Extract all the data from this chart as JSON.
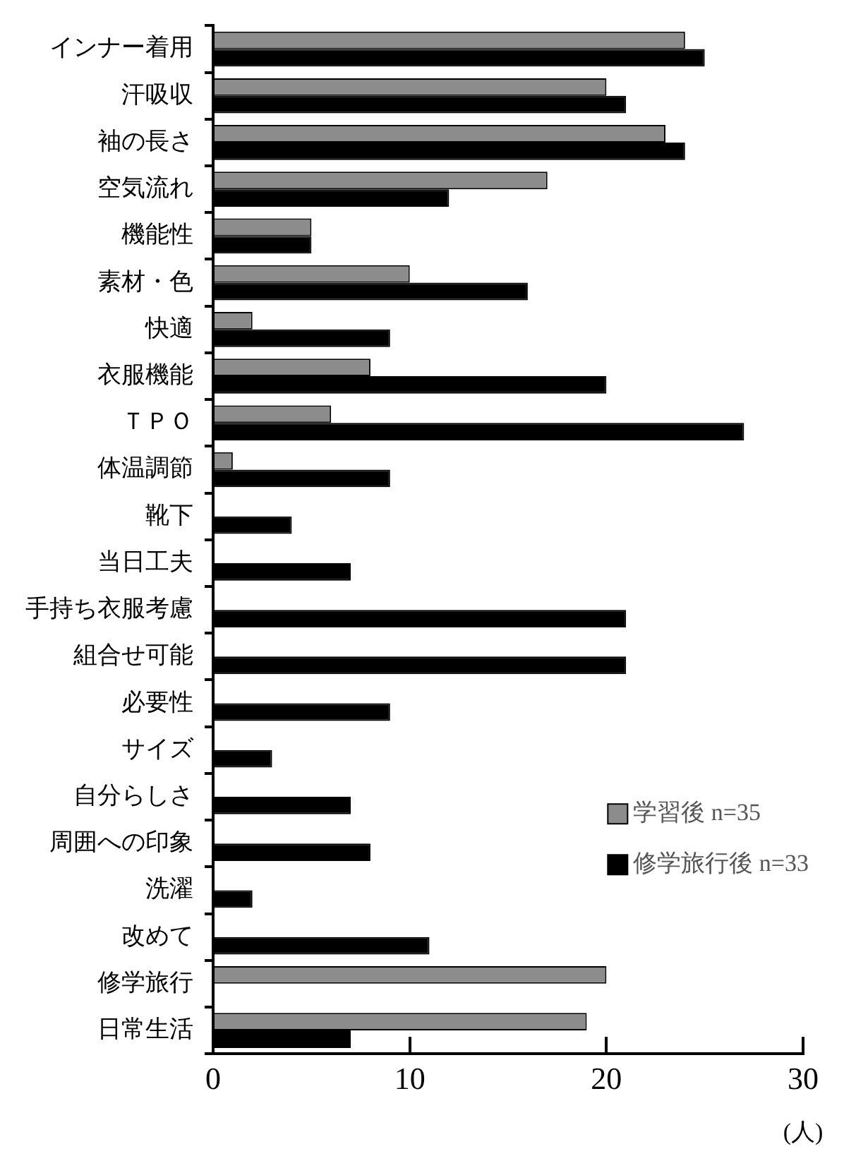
{
  "chart_data": {
    "type": "bar",
    "orientation": "horizontal",
    "xlabel": "(人)",
    "categories": [
      "インナー着用",
      "汗吸収",
      "袖の長さ",
      "空気流れ",
      "機能性",
      "素材・色",
      "快適",
      "衣服機能",
      "ＴＰＯ",
      "体温調節",
      "靴下",
      "当日工夫",
      "手持ち衣服考慮",
      "組合せ可能",
      "必要性",
      "サイズ",
      "自分らしさ",
      "周囲への印象",
      "洗濯",
      "改めて",
      "修学旅行",
      "日常生活"
    ],
    "series": [
      {
        "name": "学習後 n=35",
        "color": "#8c8c8c",
        "values": [
          24,
          20,
          23,
          17,
          5,
          10,
          2,
          8,
          6,
          1,
          null,
          null,
          null,
          null,
          null,
          null,
          null,
          null,
          null,
          null,
          20,
          19
        ]
      },
      {
        "name": "修学旅行後 n=33",
        "color": "#000000",
        "values": [
          25,
          21,
          24,
          12,
          5,
          16,
          9,
          20,
          27,
          9,
          4,
          7,
          21,
          21,
          9,
          3,
          7,
          8,
          2,
          11,
          null,
          7
        ]
      }
    ],
    "xlim": [
      0,
      30
    ],
    "xticks": [
      0,
      10,
      20,
      30
    ],
    "grid": false,
    "legend": "bottom right"
  }
}
